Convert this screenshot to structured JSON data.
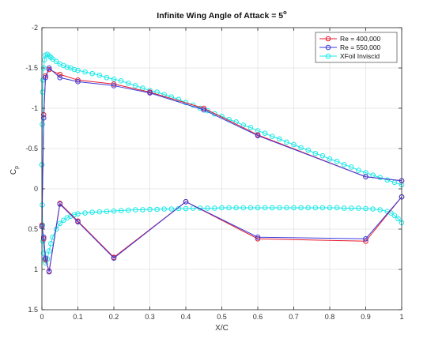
{
  "chart_data": {
    "type": "line",
    "title": "Infinite Wing Angle of Attack = 5",
    "title_superscript": "o",
    "xlabel": "X/C",
    "ylabel": "C",
    "ylabel_subscript": "p",
    "xlim": [
      0,
      1
    ],
    "ylim": [
      -2,
      1.5
    ],
    "y_reversed": true,
    "grid": true,
    "legend_position": "top-right",
    "x_ticks": [
      "0",
      "0.1",
      "0.2",
      "0.3",
      "0.4",
      "0.5",
      "0.6",
      "0.7",
      "0.8",
      "0.9",
      "1"
    ],
    "y_ticks": [
      "-2",
      "-1.5",
      "-1",
      "-0.5",
      "0",
      "0.5",
      "1",
      "1.5"
    ],
    "series": [
      {
        "name": "Re = 400,000",
        "color": "#e8192c",
        "x": [
          1.0,
          0.9,
          0.6,
          0.45,
          0.3,
          0.2,
          0.1,
          0.05,
          0.02,
          0.01,
          0.005,
          0.0,
          0.005,
          0.01,
          0.02,
          0.05,
          0.1,
          0.2,
          0.4,
          0.6,
          0.9,
          1.0
        ],
        "y": [
          -0.1,
          -0.15,
          -0.67,
          -1.0,
          -1.2,
          -1.3,
          -1.35,
          -1.42,
          -1.48,
          -1.4,
          -0.92,
          0.45,
          0.62,
          0.88,
          1.02,
          0.18,
          0.4,
          0.85,
          0.16,
          0.62,
          0.65,
          0.1
        ]
      },
      {
        "name": "Re = 550,000",
        "color": "#3a3adc",
        "x": [
          1.0,
          0.9,
          0.6,
          0.45,
          0.3,
          0.2,
          0.1,
          0.05,
          0.02,
          0.01,
          0.005,
          0.0,
          0.005,
          0.01,
          0.02,
          0.05,
          0.1,
          0.2,
          0.4,
          0.6,
          0.9,
          1.0
        ],
        "y": [
          -0.1,
          -0.15,
          -0.66,
          -0.98,
          -1.19,
          -1.28,
          -1.33,
          -1.38,
          -1.5,
          -1.38,
          -0.88,
          0.47,
          0.6,
          0.86,
          1.03,
          0.19,
          0.41,
          0.86,
          0.16,
          0.6,
          0.62,
          0.1
        ]
      },
      {
        "name": "XFoil Inviscid",
        "color": "#19e8e8",
        "upper_x": [
          1.0,
          0.98,
          0.96,
          0.94,
          0.92,
          0.9,
          0.88,
          0.86,
          0.84,
          0.82,
          0.8,
          0.78,
          0.76,
          0.74,
          0.72,
          0.7,
          0.68,
          0.66,
          0.64,
          0.62,
          0.6,
          0.58,
          0.56,
          0.54,
          0.52,
          0.5,
          0.48,
          0.46,
          0.44,
          0.42,
          0.4,
          0.38,
          0.36,
          0.34,
          0.32,
          0.3,
          0.28,
          0.26,
          0.24,
          0.22,
          0.2,
          0.18,
          0.16,
          0.14,
          0.12,
          0.1,
          0.09,
          0.08,
          0.07,
          0.06,
          0.05,
          0.04,
          0.03,
          0.025,
          0.02,
          0.015,
          0.01,
          0.007,
          0.005,
          0.003,
          0.002,
          0.001,
          0.0
        ],
        "upper_y": [
          -0.05,
          -0.08,
          -0.11,
          -0.14,
          -0.17,
          -0.2,
          -0.23,
          -0.27,
          -0.3,
          -0.34,
          -0.37,
          -0.41,
          -0.44,
          -0.48,
          -0.51,
          -0.55,
          -0.58,
          -0.62,
          -0.65,
          -0.69,
          -0.72,
          -0.76,
          -0.79,
          -0.83,
          -0.86,
          -0.9,
          -0.93,
          -0.97,
          -1.0,
          -1.04,
          -1.07,
          -1.11,
          -1.14,
          -1.17,
          -1.2,
          -1.22,
          -1.25,
          -1.28,
          -1.31,
          -1.34,
          -1.36,
          -1.38,
          -1.41,
          -1.43,
          -1.45,
          -1.47,
          -1.48,
          -1.5,
          -1.51,
          -1.53,
          -1.55,
          -1.58,
          -1.61,
          -1.63,
          -1.65,
          -1.67,
          -1.66,
          -1.6,
          -1.5,
          -1.35,
          -1.2,
          -0.8,
          -0.3
        ],
        "lower_x": [
          0.0,
          0.001,
          0.002,
          0.003,
          0.005,
          0.007,
          0.01,
          0.015,
          0.02,
          0.025,
          0.03,
          0.04,
          0.05,
          0.06,
          0.07,
          0.08,
          0.09,
          0.1,
          0.12,
          0.14,
          0.16,
          0.18,
          0.2,
          0.22,
          0.24,
          0.26,
          0.28,
          0.3,
          0.32,
          0.34,
          0.36,
          0.38,
          0.4,
          0.42,
          0.44,
          0.46,
          0.48,
          0.5,
          0.52,
          0.54,
          0.56,
          0.58,
          0.6,
          0.62,
          0.64,
          0.66,
          0.68,
          0.7,
          0.72,
          0.74,
          0.76,
          0.78,
          0.8,
          0.82,
          0.84,
          0.86,
          0.88,
          0.9,
          0.92,
          0.94,
          0.96,
          0.97,
          0.98,
          0.99,
          1.0
        ],
        "lower_y": [
          -0.3,
          0.2,
          0.45,
          0.65,
          0.8,
          0.88,
          0.92,
          0.87,
          0.77,
          0.68,
          0.6,
          0.5,
          0.43,
          0.39,
          0.36,
          0.34,
          0.32,
          0.31,
          0.3,
          0.29,
          0.285,
          0.28,
          0.275,
          0.27,
          0.265,
          0.26,
          0.26,
          0.255,
          0.255,
          0.25,
          0.25,
          0.245,
          0.245,
          0.24,
          0.24,
          0.24,
          0.24,
          0.235,
          0.235,
          0.235,
          0.235,
          0.235,
          0.235,
          0.235,
          0.235,
          0.235,
          0.235,
          0.235,
          0.235,
          0.235,
          0.235,
          0.235,
          0.235,
          0.235,
          0.24,
          0.24,
          0.24,
          0.245,
          0.25,
          0.26,
          0.28,
          0.3,
          0.33,
          0.37,
          0.42
        ]
      }
    ]
  }
}
